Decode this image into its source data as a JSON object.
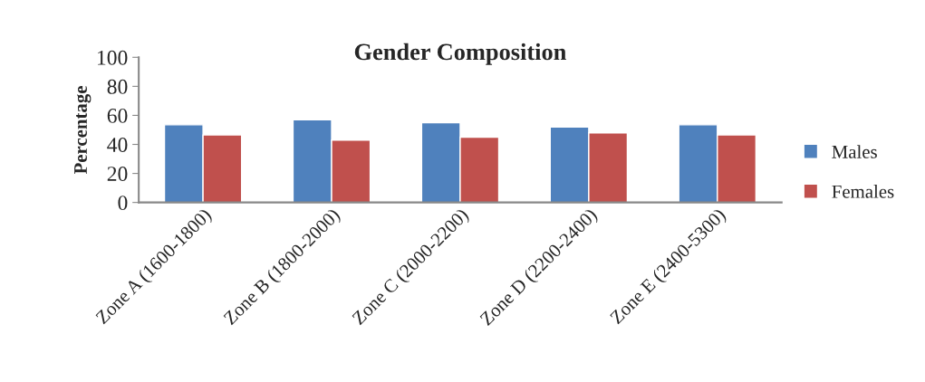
{
  "chart_data": {
    "type": "bar",
    "title": "Gender Composition",
    "ylabel": "Percentage",
    "categories": [
      "Zone A (1600-1800)",
      "Zone B (1800-2000)",
      "Zone C (2000-2200)",
      "Zone D (2200-2400)",
      "Zone E (2400-5300)"
    ],
    "series": [
      {
        "name": "Males",
        "color": "#4f81bd",
        "values": [
          53.5,
          57,
          55,
          52,
          53.5
        ]
      },
      {
        "name": "Females",
        "color": "#c0504d",
        "values": [
          46.5,
          43,
          45,
          48,
          46.5
        ]
      }
    ],
    "ylim": [
      0,
      100
    ],
    "yticks": [
      0,
      20,
      40,
      60,
      80,
      100
    ],
    "grid": false,
    "legend": "right"
  }
}
